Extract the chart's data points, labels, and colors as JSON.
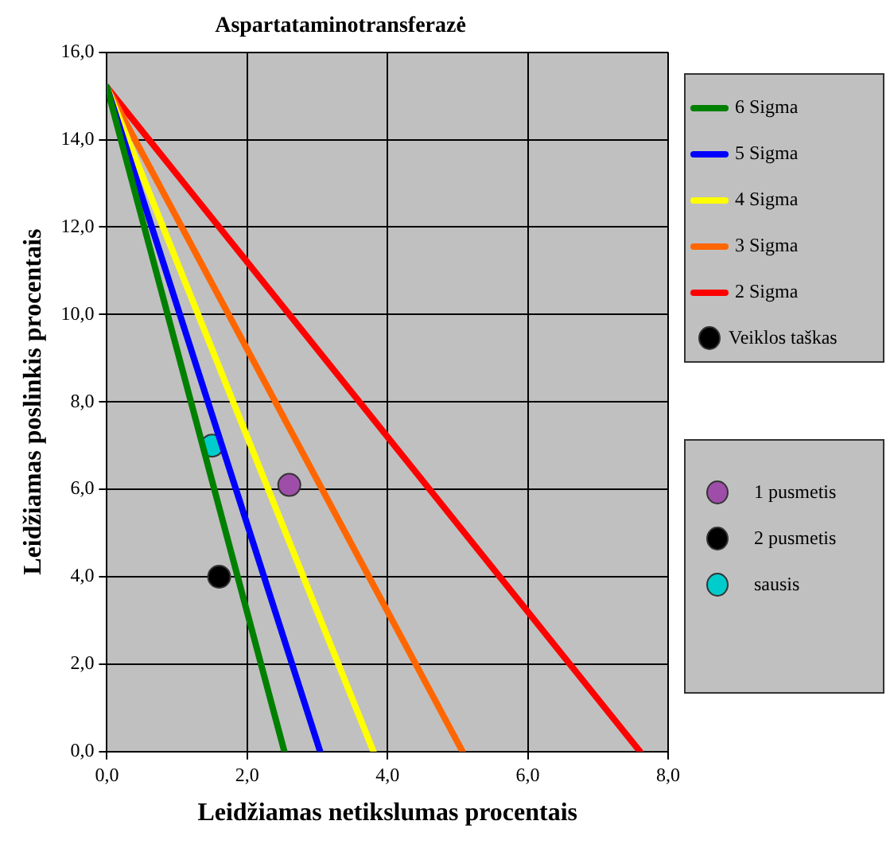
{
  "chart_data": {
    "type": "line",
    "title": "Aspartataminotransferazė",
    "xlabel": "Leidžiamas netikslumas procentais",
    "ylabel": "Leidžiamas poslinkis procentais",
    "xlim": [
      0,
      8
    ],
    "ylim": [
      0,
      16
    ],
    "xticks": [
      {
        "value": 0,
        "label": "0,0"
      },
      {
        "value": 2,
        "label": "2,0"
      },
      {
        "value": 4,
        "label": "4,0"
      },
      {
        "value": 6,
        "label": "6,0"
      },
      {
        "value": 8,
        "label": "8,0"
      }
    ],
    "yticks": [
      {
        "value": 0,
        "label": "0,0"
      },
      {
        "value": 2,
        "label": "2,0"
      },
      {
        "value": 4,
        "label": "4,0"
      },
      {
        "value": 6,
        "label": "6,0"
      },
      {
        "value": 8,
        "label": "8,0"
      },
      {
        "value": 10,
        "label": "10,0"
      },
      {
        "value": 12,
        "label": "12,0"
      },
      {
        "value": 14,
        "label": "14,0"
      },
      {
        "value": 16,
        "label": "16,0"
      }
    ],
    "grid": true,
    "legend": "right",
    "marker": "none",
    "series": [
      {
        "name": "6 Sigma",
        "color": "#008000",
        "x": [
          0,
          2.53
        ],
        "values": [
          15.2,
          0
        ]
      },
      {
        "name": "5 Sigma",
        "color": "#0000ff",
        "x": [
          0,
          3.04
        ],
        "values": [
          15.2,
          0
        ]
      },
      {
        "name": "4 Sigma",
        "color": "#ffff00",
        "x": [
          0,
          3.8
        ],
        "values": [
          15.2,
          0
        ]
      },
      {
        "name": "3 Sigma",
        "color": "#ff6600",
        "x": [
          0,
          5.07
        ],
        "values": [
          15.2,
          0
        ]
      },
      {
        "name": "2 Sigma",
        "color": "#ff0000",
        "x": [
          0,
          7.6
        ],
        "values": [
          15.2,
          0
        ]
      },
      {
        "name": "Veiklos taškas",
        "type": "scatter",
        "marker": "circle",
        "color": "#000000"
      },
      {
        "name": "1 pusmetis",
        "type": "scatter",
        "marker": "circle",
        "color": "#9e4ea8",
        "x": [
          2.6
        ],
        "values": [
          6.1
        ]
      },
      {
        "name": "2 pusmetis",
        "type": "scatter",
        "marker": "circle",
        "color": "#000000",
        "x": [
          1.6
        ],
        "values": [
          4.0
        ]
      },
      {
        "name": "sausis",
        "type": "scatter",
        "marker": "circle",
        "color": "#00cccc",
        "x": [
          1.5
        ],
        "values": [
          7.0
        ]
      }
    ]
  }
}
